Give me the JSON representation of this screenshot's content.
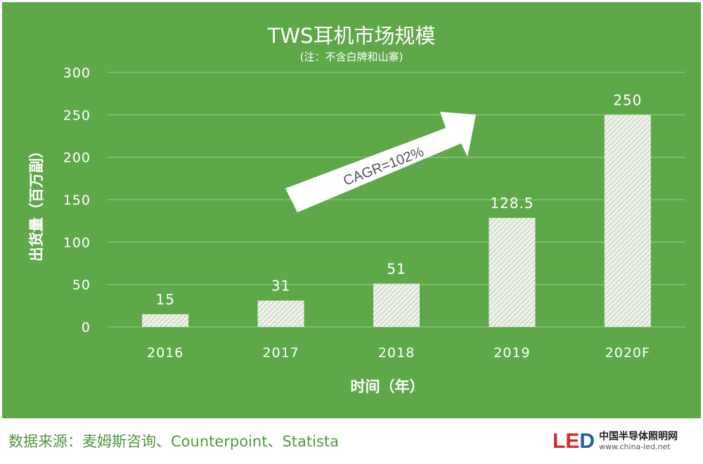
{
  "chart_data": {
    "type": "bar",
    "title": "TWS耳机市场规模",
    "subtitle": "(注：不含白牌和山寨)",
    "xlabel": "时间（年）",
    "ylabel": "出货量（百万副）",
    "categories": [
      "2016",
      "2017",
      "2018",
      "2019",
      "2020F"
    ],
    "values": [
      15,
      31,
      51,
      128.5,
      250
    ],
    "data_labels": [
      "15",
      "31",
      "51",
      "128.5",
      "250"
    ],
    "ylim": [
      0,
      300
    ],
    "yticks": [
      "0",
      "50",
      "100",
      "150",
      "200",
      "250",
      "300"
    ],
    "grid": true,
    "legend": "none",
    "bar_fill": "hatched",
    "annotation": "CAGR=102%",
    "colors": {
      "background": "#5fa84a",
      "text": "#ffffff",
      "grid": "#8cc47a",
      "bar": "#e8eee3"
    }
  },
  "footer": {
    "source": "数据来源：麦姆斯咨询、Counterpoint、Statista",
    "logo_mark_l": "L",
    "logo_mark_e": "E",
    "logo_mark_d": "D",
    "logo_name": "中国半导体照明网",
    "logo_url": "www.china-led.net"
  }
}
